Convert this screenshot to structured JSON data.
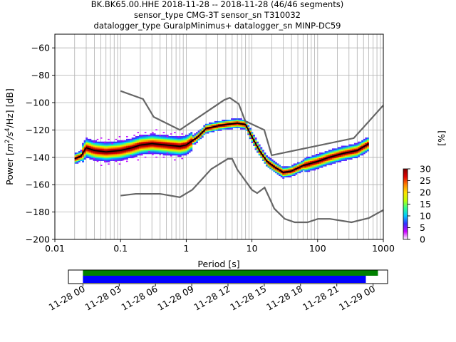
{
  "chart_data": {
    "type": "heatmap",
    "title_lines": [
      "BK.BK65.00.HHE   2018-11-28 -- 2018-11-28  (46/46 segments)",
      "sensor_type CMG-3T sensor_sn T310032",
      "datalogger_type GuralpMinimus+ datalogger_sn MINP-DC59"
    ],
    "xlabel": "Period [s]",
    "ylabel": "Power [m²/s⁴/Hz] [dB]",
    "ylabel_parts": {
      "pre": "Power [",
      "m": "m",
      "exp2": "2",
      "s": "/s",
      "exp4": "4",
      "post": "/Hz] [dB]"
    },
    "x_scale": "log",
    "xlim": [
      0.01,
      1000
    ],
    "ylim": [
      -200,
      -50
    ],
    "x_ticks": [
      {
        "value": 0.01,
        "label": "0.01"
      },
      {
        "value": 0.1,
        "label": "0.1"
      },
      {
        "value": 1,
        "label": "1"
      },
      {
        "value": 10,
        "label": "10"
      },
      {
        "value": 100,
        "label": "100"
      },
      {
        "value": 1000,
        "label": "1000"
      }
    ],
    "y_ticks": [
      {
        "value": -60,
        "label": "−60"
      },
      {
        "value": -80,
        "label": "−80"
      },
      {
        "value": -100,
        "label": "−100"
      },
      {
        "value": -120,
        "label": "−120"
      },
      {
        "value": -140,
        "label": "−140"
      },
      {
        "value": -160,
        "label": "−160"
      },
      {
        "value": -180,
        "label": "−180"
      },
      {
        "value": -200,
        "label": "−200"
      }
    ],
    "grid": true,
    "colorbar": {
      "label": "[%]",
      "min": 0,
      "max": 30,
      "ticks": [
        {
          "value": 0,
          "label": "0"
        },
        {
          "value": 5,
          "label": "5"
        },
        {
          "value": 10,
          "label": "10"
        },
        {
          "value": 15,
          "label": "15"
        },
        {
          "value": 20,
          "label": "20"
        },
        {
          "value": 25,
          "label": "25"
        },
        {
          "value": 30,
          "label": "30"
        }
      ],
      "colors": [
        "#ffffff",
        "#cc00ff",
        "#3030ff",
        "#00c8ff",
        "#30ff90",
        "#c0ff00",
        "#ffe000",
        "#ff8000",
        "#e00000",
        "#800000"
      ]
    },
    "noise_model_high": {
      "x": [
        0.1,
        0.22,
        0.32,
        0.8,
        3.8,
        4.6,
        6.3,
        7.9,
        15.4,
        20,
        354.8,
        10000
      ],
      "y": [
        -91.5,
        -97.4,
        -110.5,
        -120,
        -98,
        -96.5,
        -101,
        -113.5,
        -120,
        -138.5,
        -126,
        -48.5
      ]
    },
    "noise_model_low": {
      "x": [
        0.1,
        0.17,
        0.4,
        0.8,
        1.24,
        2.4,
        4.3,
        5,
        6,
        10,
        12,
        15.6,
        21.9,
        31.6,
        45,
        70,
        101,
        154,
        328,
        600,
        10000
      ],
      "y": [
        -168,
        -166.7,
        -166.7,
        -169.2,
        -163.7,
        -148.6,
        -141.1,
        -141.1,
        -149,
        -163.8,
        -166.2,
        -162.1,
        -177.5,
        -185,
        -187.5,
        -187.5,
        -185,
        -185,
        -187.5,
        -184.4,
        -151.9
      ]
    },
    "mode_line": {
      "x": [
        0.02,
        0.025,
        0.03,
        0.04,
        0.06,
        0.1,
        0.15,
        0.2,
        0.3,
        0.5,
        0.8,
        1.0,
        1.5,
        2.0,
        3.0,
        4.0,
        6.0,
        8.0,
        10,
        13,
        17,
        22,
        30,
        40,
        60,
        100,
        150,
        250,
        400,
        600
      ],
      "y": [
        -141,
        -139,
        -133,
        -135,
        -136,
        -135,
        -133,
        -131,
        -130,
        -131,
        -132,
        -131,
        -125,
        -119,
        -117,
        -116,
        -115,
        -116,
        -125,
        -135,
        -143,
        -147,
        -151,
        -150,
        -146,
        -143,
        -140,
        -137,
        -135,
        -130
      ]
    },
    "time_axis": {
      "tick_labels": [
        "11-28 00",
        "11-28 03",
        "11-28 06",
        "11-28 09",
        "11-28 12",
        "11-28 15",
        "11-28 18",
        "11-28 21",
        "11-29 00"
      ],
      "tick_hours": [
        0,
        3,
        6,
        9,
        12,
        15,
        18,
        21,
        24
      ],
      "range_hours": [
        -1.2,
        25.2
      ],
      "green_bar_hours": [
        0,
        24.4
      ],
      "blue_bar_hours": [
        0,
        23.4
      ]
    }
  }
}
